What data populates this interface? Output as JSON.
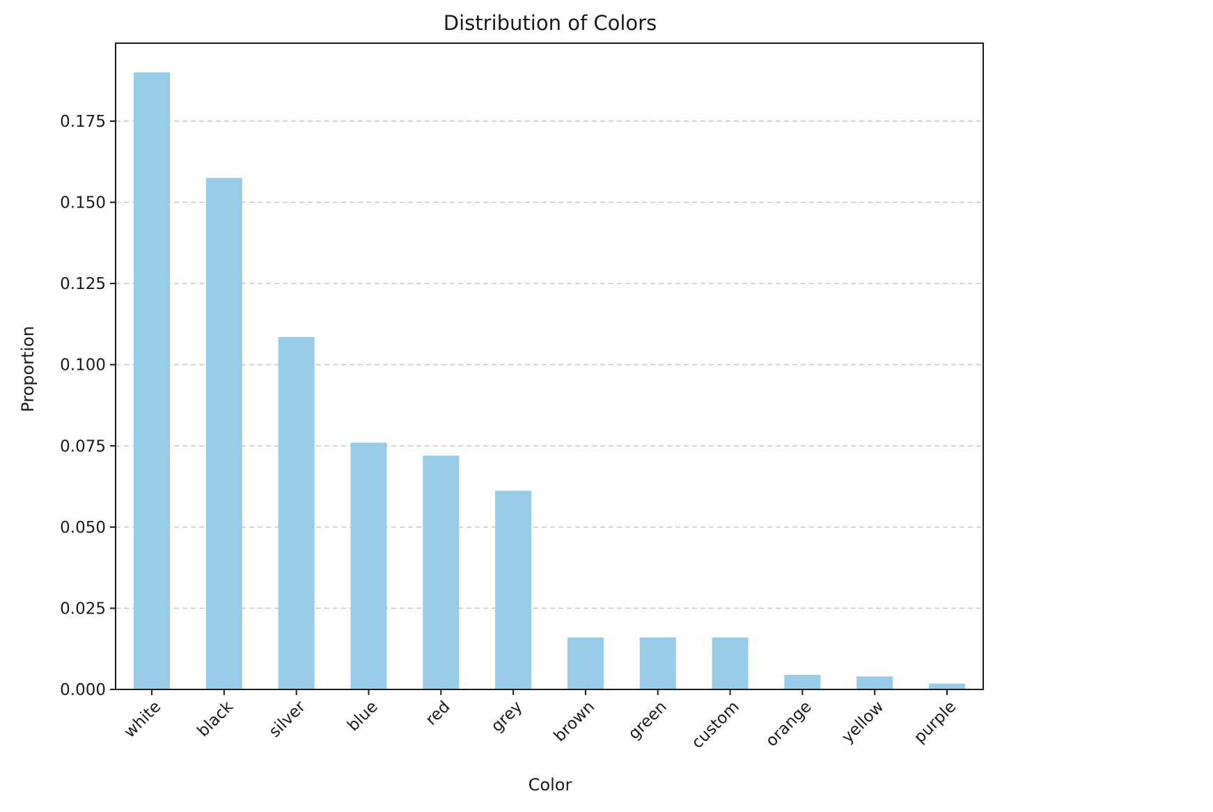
{
  "chart_data": {
    "type": "bar",
    "title": "Distribution of Colors",
    "xlabel": "Color",
    "ylabel": "Proportion",
    "categories": [
      "white",
      "black",
      "silver",
      "blue",
      "red",
      "grey",
      "brown",
      "green",
      "custom",
      "orange",
      "yellow",
      "purple"
    ],
    "values": [
      0.19,
      0.1575,
      0.1085,
      0.076,
      0.072,
      0.0612,
      0.016,
      0.016,
      0.016,
      0.0045,
      0.004,
      0.0018
    ],
    "ylim": [
      0,
      0.199
    ],
    "yticks": [
      0.0,
      0.025,
      0.05,
      0.075,
      0.1,
      0.125,
      0.15,
      0.175
    ],
    "ytick_labels": [
      "0.000",
      "0.025",
      "0.050",
      "0.075",
      "0.100",
      "0.125",
      "0.150",
      "0.175"
    ],
    "bar_color": "#97cbe7",
    "grid": "y-dashed",
    "xtick_rotation": "45"
  }
}
